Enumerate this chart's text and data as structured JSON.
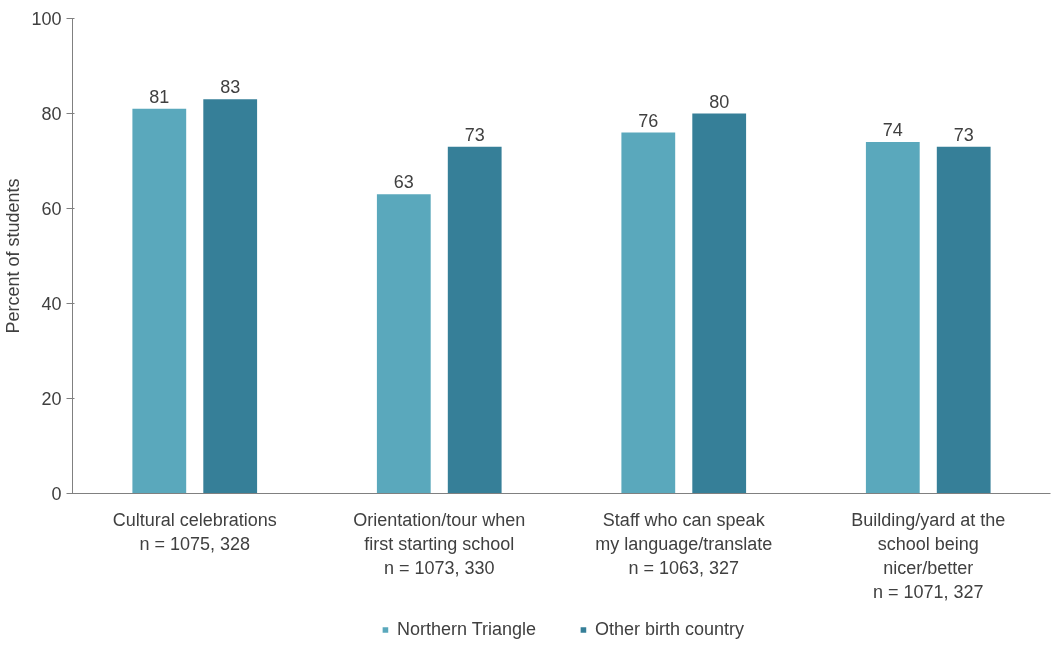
{
  "chart_data": {
    "type": "bar",
    "ylabel": "Percent of students",
    "categories": [
      "Cultural celebrations\nn = 1075, 328",
      "Orientation/tour when\nfirst starting school\nn = 1073, 330",
      "Staff who can speak\nmy language/translate\nn = 1063, 327",
      "Building/yard at the\nschool being\nnicer/better\nn = 1071, 327"
    ],
    "series": [
      {
        "name": "Northern Triangle",
        "color": "#5aa8bc",
        "values": [
          81,
          63,
          76,
          74
        ]
      },
      {
        "name": "Other birth country",
        "color": "#367f98",
        "values": [
          83,
          73,
          80,
          73
        ]
      }
    ],
    "ylim": [
      0,
      100
    ],
    "yticks": [
      0,
      20,
      40,
      60,
      80,
      100
    ],
    "grid": false,
    "legend": "bottom",
    "data_labels": true
  }
}
